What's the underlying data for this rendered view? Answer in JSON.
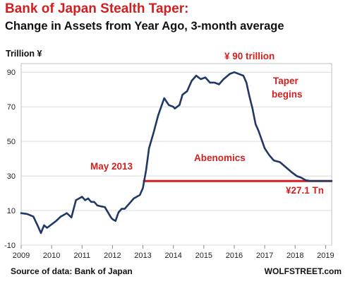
{
  "title": "Bank of Japan Stealth Taper:",
  "subtitle": "Change in Assets from Year Ago, 3-month average",
  "source": "Source of data: Bank of Japan",
  "brand": "WOLFSTREET.com",
  "colors": {
    "line": "#1f3864",
    "accent": "#d21f1f",
    "grid": "#d9d9d9"
  },
  "chart_data": {
    "type": "line",
    "title": "Bank of Japan Stealth Taper:",
    "subtitle": "Change in Assets from Year Ago, 3-month average",
    "ylabel": "Trillion ¥",
    "ylim": [
      -10,
      95
    ],
    "xlim": [
      2009,
      2019.2
    ],
    "yticks": [
      -10,
      10,
      30,
      50,
      70,
      90
    ],
    "ytick_labels": [
      "-10",
      "10",
      "30",
      "50",
      "70",
      "90"
    ],
    "xticks": [
      2009,
      2010,
      2011,
      2012,
      2013,
      2014,
      2015,
      2016,
      2017,
      2018,
      2019
    ],
    "xtick_labels": [
      "2009",
      "2010",
      "2011",
      "2012",
      "2013",
      "2014",
      "2015",
      "2016",
      "2017",
      "2018",
      "2019"
    ],
    "grid": true,
    "series": [
      {
        "x": [
          2009.0,
          2009.2,
          2009.4,
          2009.55,
          2009.65,
          2009.75,
          2009.85,
          2010.0,
          2010.15,
          2010.3,
          2010.5,
          2010.65,
          2010.8,
          2011.0,
          2011.1,
          2011.2,
          2011.3,
          2011.4,
          2011.5,
          2011.6,
          2011.75,
          2011.95,
          2012.0,
          2012.1,
          2012.2,
          2012.3,
          2012.4,
          2012.55,
          2012.7,
          2012.9,
          2013.0,
          2013.1,
          2013.2,
          2013.35,
          2013.5,
          2013.7,
          2013.85,
          2014.0,
          2014.05,
          2014.2,
          2014.3,
          2014.45,
          2014.6,
          2014.75,
          2014.9,
          2015.05,
          2015.2,
          2015.35,
          2015.5,
          2015.65,
          2015.85,
          2016.0,
          2016.15,
          2016.3,
          2016.4,
          2016.5,
          2016.6,
          2016.7,
          2016.8,
          2016.9,
          2017.0,
          2017.15,
          2017.3,
          2017.5,
          2017.7,
          2017.9,
          2018.05,
          2018.2,
          2018.35,
          2018.5,
          2018.7,
          2018.9,
          2019.0,
          2019.2
        ],
        "values": [
          8.5,
          8,
          6.5,
          1,
          -3,
          1.5,
          0,
          2,
          4,
          6.5,
          8.5,
          6,
          16,
          18,
          16,
          17,
          15,
          15,
          13,
          12.5,
          12,
          6,
          5,
          4,
          9,
          11,
          11,
          14,
          17,
          19,
          23,
          33,
          46,
          55,
          65,
          75,
          71,
          70,
          69,
          71,
          77,
          79,
          85,
          88,
          86,
          87,
          84,
          84,
          83,
          86,
          89,
          90,
          89,
          88,
          84,
          76,
          69,
          60,
          56,
          51,
          46,
          42,
          39,
          38,
          35,
          32,
          30,
          29,
          27.5,
          27.1,
          27.1,
          27.1,
          27.1,
          27.1
        ]
      }
    ],
    "reference_line": {
      "value": 27.1,
      "from": 2013.0,
      "to": 2019.2
    },
    "annotations": {
      "peak": "¥ 90 trillion",
      "taper_1": "Taper",
      "taper_2": "begins",
      "abenomics": "Abenomics",
      "may2013": "May 2013",
      "latest": "¥27.1 Tn"
    }
  }
}
